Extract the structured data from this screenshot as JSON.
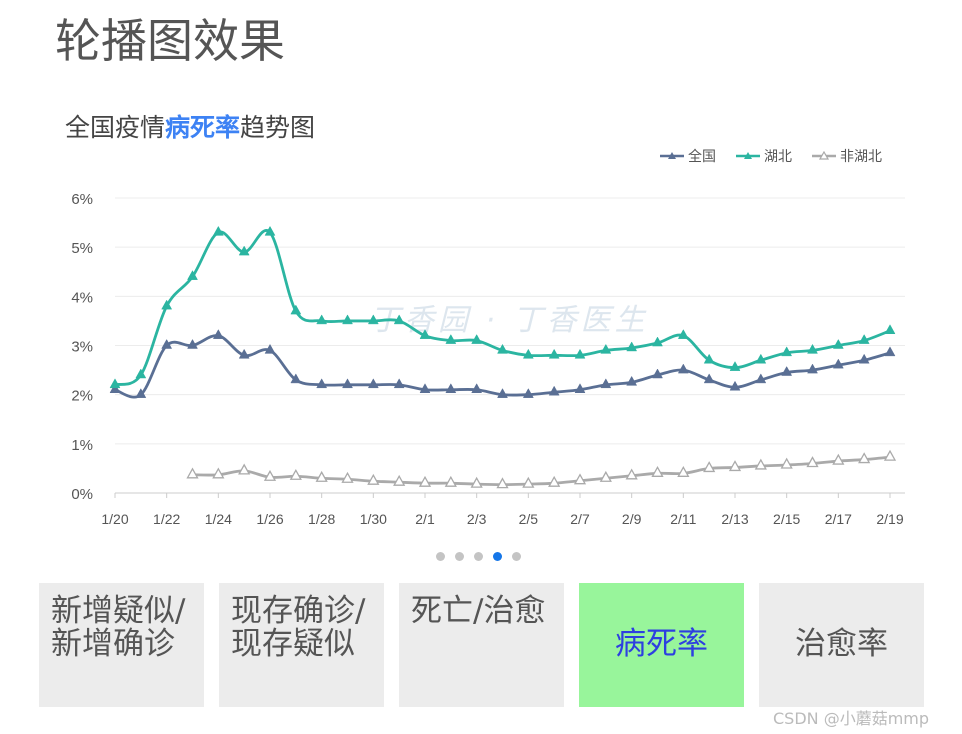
{
  "page_title": "轮播图效果",
  "chart_heading": {
    "prefix": "全国疫情",
    "highlight": "病死率",
    "suffix": "趋势图"
  },
  "watermark": "丁香园 · 丁香医生",
  "colors": {
    "national": "#5a6f94",
    "hubei": "#2bb5a1",
    "non_hubei": "#aaaaaa",
    "highlight": "#3d82f4",
    "active_tab_bg": "#98f59b",
    "active_tab_text": "#2d3fe0",
    "active_dot": "#1576e8"
  },
  "carousel": {
    "total_dots": 5,
    "active_index": 3
  },
  "tabs": [
    {
      "label": "新增疑似/新增确诊",
      "active": false
    },
    {
      "label": "现存确诊/现存疑似",
      "active": false
    },
    {
      "label": "死亡/治愈",
      "active": false
    },
    {
      "label": "病死率",
      "active": true
    },
    {
      "label": "治愈率",
      "active": false
    }
  ],
  "credit": "CSDN @小蘑菇mmp",
  "chart_data": {
    "type": "line",
    "title": "全国疫情病死率趋势图",
    "xlabel": "",
    "ylabel": "",
    "ylim": [
      0,
      6
    ],
    "yticks": [
      "0%",
      "1%",
      "2%",
      "3%",
      "4%",
      "5%",
      "6%"
    ],
    "categories": [
      "1/20",
      "1/21",
      "1/22",
      "1/23",
      "1/24",
      "1/25",
      "1/26",
      "1/27",
      "1/28",
      "1/29",
      "1/30",
      "1/31",
      "2/1",
      "2/2",
      "2/3",
      "2/4",
      "2/5",
      "2/6",
      "2/7",
      "2/8",
      "2/9",
      "2/10",
      "2/11",
      "2/12",
      "2/13",
      "2/14",
      "2/15",
      "2/16",
      "2/17",
      "2/18",
      "2/19"
    ],
    "xtick_labels": [
      "1/20",
      "1/22",
      "1/24",
      "1/26",
      "1/28",
      "1/30",
      "2/1",
      "2/3",
      "2/5",
      "2/7",
      "2/9",
      "2/11",
      "2/13",
      "2/15",
      "2/17",
      "2/19"
    ],
    "grid": true,
    "legend_position": "top-right",
    "series": [
      {
        "name": "全国",
        "color": "#5a6f94",
        "values": [
          2.1,
          2.0,
          3.0,
          3.0,
          3.2,
          2.8,
          2.9,
          2.3,
          2.2,
          2.2,
          2.2,
          2.2,
          2.1,
          2.1,
          2.1,
          2.0,
          2.0,
          2.05,
          2.1,
          2.2,
          2.25,
          2.4,
          2.5,
          2.3,
          2.15,
          2.3,
          2.45,
          2.5,
          2.6,
          2.7,
          2.85
        ]
      },
      {
        "name": "湖北",
        "color": "#2bb5a1",
        "values": [
          2.2,
          2.4,
          3.8,
          4.4,
          5.3,
          4.9,
          5.3,
          3.7,
          3.5,
          3.5,
          3.5,
          3.5,
          3.2,
          3.1,
          3.1,
          2.9,
          2.8,
          2.8,
          2.8,
          2.9,
          2.95,
          3.05,
          3.2,
          2.7,
          2.55,
          2.7,
          2.85,
          2.9,
          3.0,
          3.1,
          3.3
        ]
      },
      {
        "name": "非湖北",
        "color": "#aaaaaa",
        "values": [
          null,
          null,
          null,
          0.37,
          0.37,
          0.45,
          0.32,
          0.34,
          0.3,
          0.28,
          0.24,
          0.22,
          0.2,
          0.2,
          0.18,
          0.17,
          0.18,
          0.2,
          0.25,
          0.3,
          0.35,
          0.4,
          0.4,
          0.5,
          0.52,
          0.55,
          0.57,
          0.6,
          0.65,
          0.68,
          0.73
        ]
      }
    ]
  }
}
